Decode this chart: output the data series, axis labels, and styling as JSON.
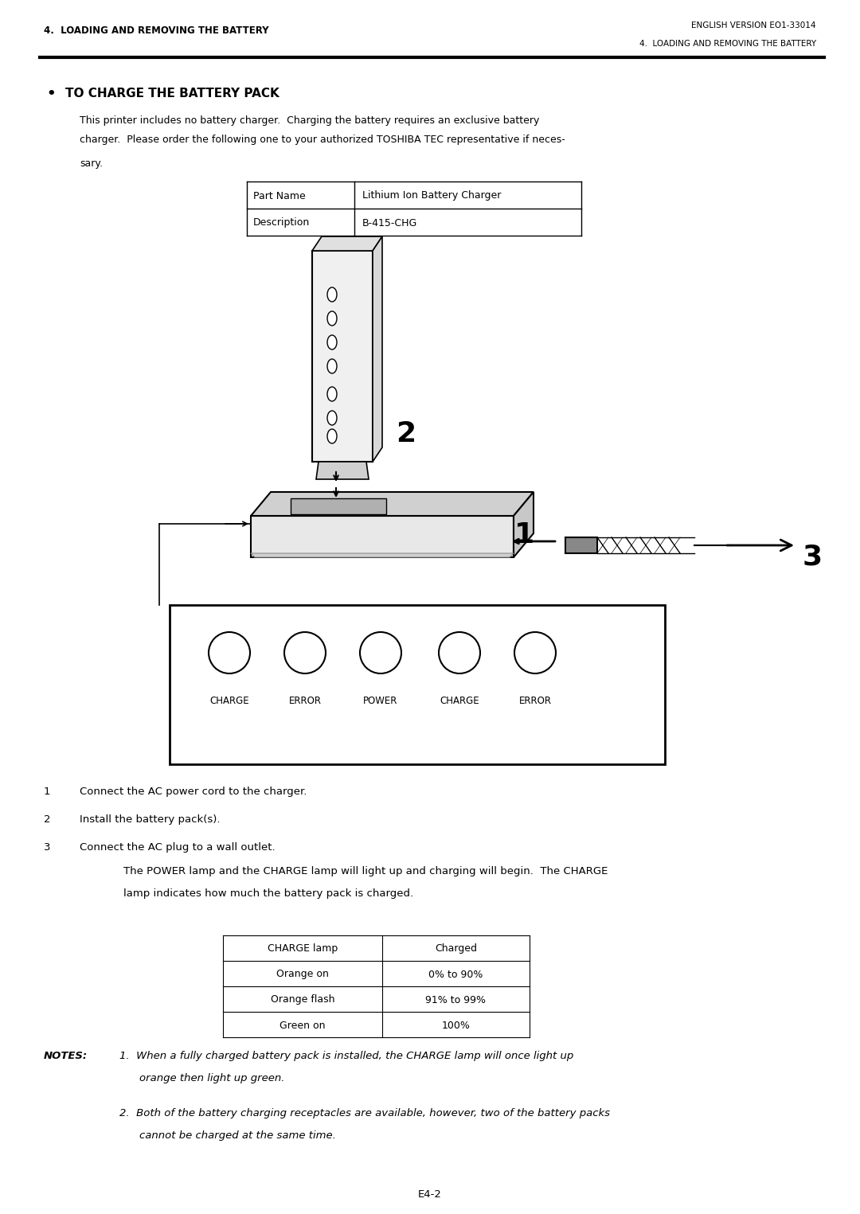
{
  "bg_color": "#ffffff",
  "header_left": "4.  LOADING AND REMOVING THE BATTERY",
  "header_right": "ENGLISH VERSION EO1-33014",
  "header_right2": "4.  LOADING AND REMOVING THE BATTERY",
  "section_title": "TO CHARGE THE BATTERY PACK",
  "body_text1": "This printer includes no battery charger.  Charging the battery requires an exclusive battery",
  "body_text2": "charger.  Please order the following one to your authorized TOSHIBA TEC representative if neces-",
  "body_text3": "sary.",
  "table1_col1": [
    "Part Name",
    "Description"
  ],
  "table1_col2": [
    "Lithium Ion Battery Charger",
    "B-415-CHG"
  ],
  "step1": "Connect the AC power cord to the charger.",
  "step2": "Install the battery pack(s).",
  "step3": "Connect the AC plug to a wall outlet.",
  "step3_detail1": "The POWER lamp and the CHARGE lamp will light up and charging will begin.  The CHARGE",
  "step3_detail2": "lamp indicates how much the battery pack is charged.",
  "table2_col1": [
    "CHARGE lamp",
    "Orange on",
    "Orange flash",
    "Green on"
  ],
  "table2_col2": [
    "Charged",
    "0% to 90%",
    "91% to 99%",
    "100%"
  ],
  "notes_bold": "NOTES:",
  "note1": "1.  When a fully charged battery pack is installed, the CHARGE lamp will once light up",
  "note1b": "orange then light up green.",
  "note2": "2.  Both of the battery charging receptacles are available, however, two of the battery packs",
  "note2b": "cannot be charged at the same time.",
  "footer": "E4-2",
  "lamp_labels": [
    "CHARGE",
    "ERROR",
    "POWER",
    "CHARGE",
    "ERROR"
  ]
}
